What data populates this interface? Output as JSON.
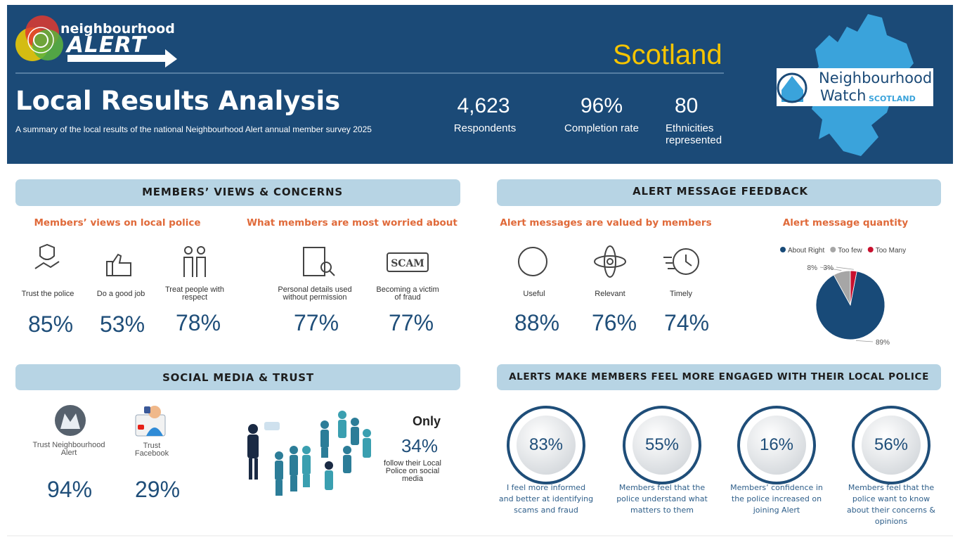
{
  "header": {
    "logo_top": "neighbourhood",
    "logo_bottom": "ALERT",
    "region": "Scotland",
    "title": "Local Results Analysis",
    "subtitle": "A summary of the local results of the national Neighbourhood Alert annual member survey 2025",
    "stats": [
      {
        "value": "4,623",
        "label": "Respondents"
      },
      {
        "value": "96%",
        "label": "Completion rate"
      },
      {
        "value": "80",
        "label": "Ethnicities represented"
      }
    ],
    "partner": {
      "line1": "Neighbourhood",
      "line2": "Watch",
      "line3": "SCOTLAND"
    }
  },
  "members_views": {
    "heading": "MEMBERS’ VIEWS & CONCERNS",
    "police": {
      "heading": "Members’ views on local police",
      "items": [
        {
          "label": "Trust the police",
          "value": "85%"
        },
        {
          "label": "Do a good job",
          "value": "53%"
        },
        {
          "label": "Treat people with respect",
          "value": "78%"
        }
      ]
    },
    "worried": {
      "heading": "What members are most worried about",
      "items": [
        {
          "label": "Personal details used without permission",
          "value": "77%"
        },
        {
          "label": "Becoming a victim of fraud",
          "value": "77%"
        }
      ]
    }
  },
  "alert_feedback": {
    "heading": "ALERT MESSAGE FEEDBACK",
    "valued": {
      "heading": "Alert messages are valued by members",
      "items": [
        {
          "label": "Useful",
          "value": "88%"
        },
        {
          "label": "Relevant",
          "value": "76%"
        },
        {
          "label": "Timely",
          "value": "74%"
        }
      ]
    }
  },
  "chart_data": {
    "type": "pie",
    "title": "Alert message quantity",
    "categories": [
      "About Right",
      "Too few",
      "Too Many"
    ],
    "values": [
      89,
      8,
      3
    ],
    "value_labels": [
      "89%",
      "8%",
      "3%"
    ],
    "colors": [
      "#184a78",
      "#a6a6a6",
      "#c8102e"
    ],
    "legend": "top"
  },
  "social_media": {
    "heading": "SOCIAL MEDIA & TRUST",
    "items": [
      {
        "label": "Trust Neighbourhood Alert",
        "value": "94%"
      },
      {
        "label": "Trust Facebook",
        "value": "29%"
      }
    ],
    "follow": {
      "prefix": "Only",
      "value": "34%",
      "label": "follow their Local Police on social media"
    }
  },
  "engagement": {
    "heading": "ALERTS MAKE MEMBERS FEEL MORE ENGAGED WITH THEIR LOCAL POLICE",
    "items": [
      {
        "value": "83%",
        "label": "I feel more informed and better at identifying scams and fraud"
      },
      {
        "value": "55%",
        "label": "Members feel that the police understand what matters to them"
      },
      {
        "value": "16%",
        "label": "Members’ confidence in the police increased on joining Alert"
      },
      {
        "value": "56%",
        "label": "Members feel that the police want to know about their concerns & opinions"
      }
    ]
  }
}
